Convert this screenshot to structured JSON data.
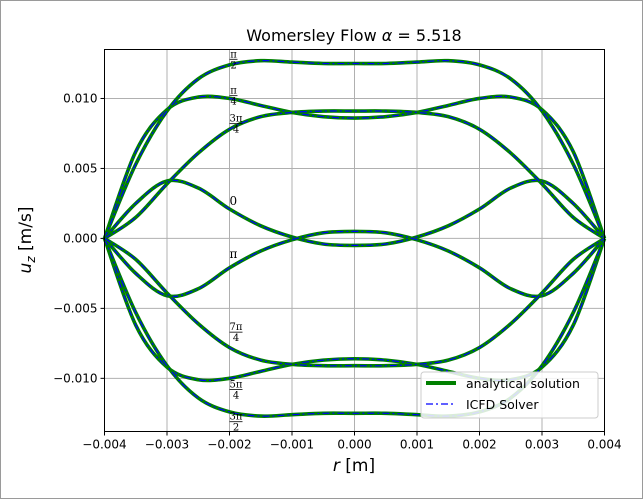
{
  "chart_data": {
    "type": "line",
    "title": "Womersley Flow α = 5.518",
    "title_prefix": "Womersley Flow ",
    "title_alpha": "α",
    "title_value": " = 5.518",
    "xlabel": "r [m]",
    "xlabel_symbol": "r",
    "xlabel_unit": " [m]",
    "ylabel": "u_z [m/s]",
    "ylabel_symbol": "u",
    "ylabel_sub": "z",
    "ylabel_unit": " [m/s]",
    "xlim": [
      -0.004,
      0.004
    ],
    "ylim": [
      -0.0138,
      0.0135
    ],
    "x_ticks": [
      -0.004,
      -0.003,
      -0.002,
      -0.001,
      0.0,
      0.001,
      0.002,
      0.003,
      0.004
    ],
    "x_tick_labels": [
      "−0.004",
      "−0.003",
      "−0.002",
      "−0.001",
      "0.000",
      "0.001",
      "0.002",
      "0.003",
      "0.004"
    ],
    "y_ticks": [
      -0.01,
      -0.005,
      0.0,
      0.005,
      0.01
    ],
    "y_tick_labels": [
      "−0.010",
      "−0.005",
      "0.000",
      "0.005",
      "0.010"
    ],
    "grid": true,
    "legend_position": "lower-right",
    "legend": [
      {
        "label": "analytical solution",
        "color": "#008000",
        "style": "solid"
      },
      {
        "label": "ICFD Solver",
        "color": "#0000ff",
        "style": "dashdot"
      }
    ],
    "profile_x": [
      -0.004,
      -0.0035,
      -0.003,
      -0.0025,
      -0.002,
      -0.0015,
      -0.001,
      -0.0005,
      0.0,
      0.0005,
      0.001,
      0.0015,
      0.002,
      0.0025,
      0.003,
      0.0035,
      0.004
    ],
    "series": [
      {
        "phase": "0",
        "values": [
          0.0,
          0.0025,
          0.0041,
          0.0036,
          0.0021,
          0.0009,
          0.0001,
          -0.0004,
          -0.0005,
          -0.0004,
          0.0001,
          0.0009,
          0.0021,
          0.0036,
          0.0041,
          0.0025,
          0.0
        ]
      },
      {
        "phase": "π/4",
        "values": [
          0.0,
          0.0062,
          0.0092,
          0.0101,
          0.01,
          0.0095,
          0.009,
          0.0087,
          0.0086,
          0.0087,
          0.009,
          0.0095,
          0.01,
          0.0101,
          0.0092,
          0.0062,
          0.0
        ]
      },
      {
        "phase": "π/2",
        "values": [
          0.0,
          0.0053,
          0.0091,
          0.0114,
          0.0124,
          0.0127,
          0.0126,
          0.0125,
          0.0125,
          0.0125,
          0.0126,
          0.0127,
          0.0124,
          0.0114,
          0.0091,
          0.0053,
          0.0
        ]
      },
      {
        "phase": "3π/4",
        "values": [
          0.0,
          0.0015,
          0.0039,
          0.0061,
          0.0078,
          0.0087,
          0.009,
          0.0091,
          0.0091,
          0.0091,
          0.009,
          0.0087,
          0.0078,
          0.0061,
          0.0039,
          0.0015,
          0.0
        ]
      },
      {
        "phase": "π",
        "values": [
          0.0,
          -0.0025,
          -0.0041,
          -0.0036,
          -0.0021,
          -0.0009,
          -0.0001,
          0.0004,
          0.0005,
          0.0004,
          -0.0001,
          -0.0009,
          -0.0021,
          -0.0036,
          -0.0041,
          -0.0025,
          0.0
        ]
      },
      {
        "phase": "5π/4",
        "values": [
          0.0,
          -0.0062,
          -0.0092,
          -0.0101,
          -0.01,
          -0.0095,
          -0.009,
          -0.0087,
          -0.0086,
          -0.0087,
          -0.009,
          -0.0095,
          -0.01,
          -0.0101,
          -0.0092,
          -0.0062,
          0.0
        ]
      },
      {
        "phase": "3π/2",
        "values": [
          0.0,
          -0.0053,
          -0.0091,
          -0.0114,
          -0.0124,
          -0.0127,
          -0.0126,
          -0.0125,
          -0.0125,
          -0.0125,
          -0.0126,
          -0.0127,
          -0.0124,
          -0.0114,
          -0.0091,
          -0.0053,
          0.0
        ]
      },
      {
        "phase": "7π/4",
        "values": [
          0.0,
          -0.0015,
          -0.0039,
          -0.0061,
          -0.0078,
          -0.0087,
          -0.009,
          -0.0091,
          -0.0091,
          -0.0091,
          -0.009,
          -0.0087,
          -0.0078,
          -0.0061,
          -0.0039,
          -0.0015,
          0.0
        ]
      }
    ],
    "annotations": [
      {
        "num": "π",
        "den": "2",
        "x": -0.002,
        "y": 0.0128
      },
      {
        "num": "π",
        "den": "4",
        "x": -0.002,
        "y": 0.0102
      },
      {
        "num": "3π",
        "den": "4",
        "x": -0.002,
        "y": 0.0082
      },
      {
        "text": "0",
        "x": -0.002,
        "y": 0.0024
      },
      {
        "text": "π",
        "x": -0.002,
        "y": -0.0014
      },
      {
        "num": "7π",
        "den": "4",
        "x": -0.002,
        "y": -0.0067
      },
      {
        "num": "5π",
        "den": "4",
        "x": -0.002,
        "y": -0.0108
      },
      {
        "num": "3π",
        "den": "2",
        "x": -0.002,
        "y": -0.0131
      }
    ]
  }
}
